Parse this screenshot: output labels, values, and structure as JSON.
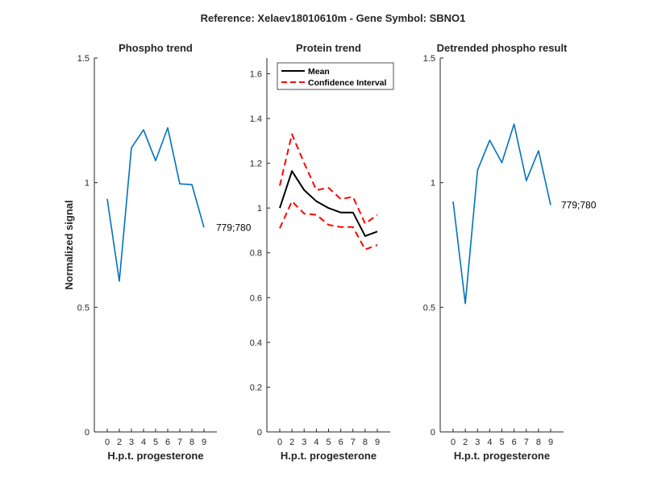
{
  "figure": {
    "suptitle": "Reference:  Xelaev18010610m - Gene Symbol:  SBNO1"
  },
  "chart_data": [
    {
      "type": "line",
      "title": "Phospho trend",
      "xlabel": "H.p.t. progesterone",
      "ylabel": "Normalized signal",
      "x_ticks": [
        "0",
        "2",
        "3",
        "4",
        "5",
        "6",
        "7",
        "8",
        "9"
      ],
      "ylim": [
        0,
        1.5
      ],
      "y_ticks": [
        "0",
        "0.5",
        "1",
        "1.5"
      ],
      "y_tick_values": [
        0,
        0.5,
        1,
        1.5
      ],
      "series": [
        {
          "values": [
            0.935,
            0.605,
            1.14,
            1.212,
            1.088,
            1.22,
            0.995,
            0.992,
            0.82
          ],
          "color": "#0072BD"
        }
      ],
      "annotation": "779;780"
    },
    {
      "type": "line",
      "title": "Protein trend",
      "xlabel": "H.p.t. progesterone",
      "ylabel": "",
      "x_ticks": [
        "0",
        "2",
        "3",
        "4",
        "5",
        "6",
        "7",
        "8",
        "9"
      ],
      "ylim": [
        0,
        1.67
      ],
      "y_ticks": [
        "0",
        "0.2",
        "0.4",
        "0.6",
        "0.8",
        "1",
        "1.2",
        "1.4",
        "1.6"
      ],
      "y_tick_values": [
        0,
        0.2,
        0.4,
        0.6,
        0.8,
        1,
        1.2,
        1.4,
        1.6
      ],
      "legend": {
        "placement": "top-left"
      },
      "series": [
        {
          "name": "Mean",
          "values": [
            1.0,
            1.165,
            1.08,
            1.03,
            1.0,
            0.98,
            0.98,
            0.875,
            0.895
          ],
          "color": "#000000",
          "style": "solid"
        },
        {
          "name": "Confidence Interval",
          "values": [
            1.1,
            1.33,
            1.2,
            1.08,
            1.09,
            1.04,
            1.05,
            0.93,
            0.97
          ],
          "color": "#FF0000",
          "style": "dashed"
        },
        {
          "values": [
            0.91,
            1.03,
            0.975,
            0.97,
            0.925,
            0.915,
            0.915,
            0.815,
            0.835
          ],
          "color": "#FF0000",
          "style": "dashed"
        }
      ]
    },
    {
      "type": "line",
      "title": "Detrended phospho result",
      "xlabel": "H.p.t. progesterone",
      "ylabel": "",
      "x_ticks": [
        "0",
        "2",
        "3",
        "4",
        "5",
        "6",
        "7",
        "8",
        "9"
      ],
      "ylim": [
        0,
        1.5
      ],
      "y_ticks": [
        "0",
        "0.5",
        "1",
        "1.5"
      ],
      "y_tick_values": [
        0,
        0.5,
        1,
        1.5
      ],
      "series": [
        {
          "values": [
            0.925,
            0.515,
            1.05,
            1.17,
            1.08,
            1.235,
            1.008,
            1.128,
            0.91
          ],
          "color": "#0072BD"
        }
      ],
      "annotation": "779;780"
    }
  ]
}
